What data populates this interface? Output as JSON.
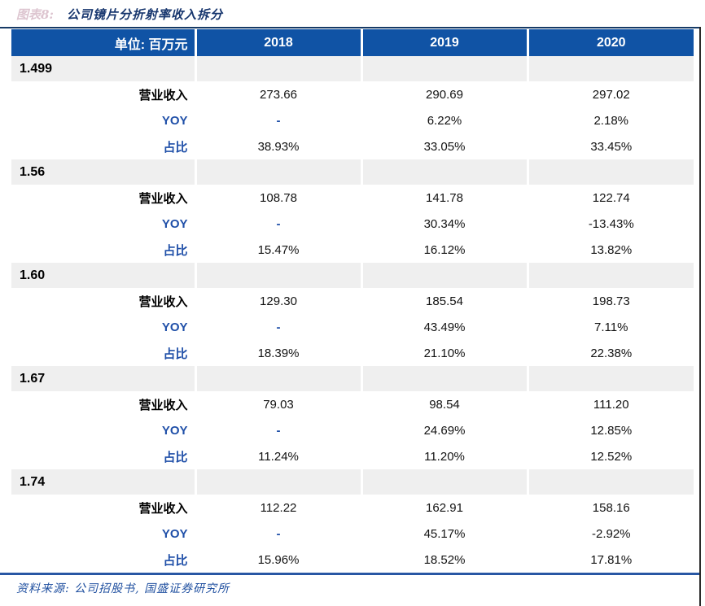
{
  "title": {
    "prefix": "图表8:",
    "text": "公司镜片分折射率收入拆分"
  },
  "colors": {
    "header_bg": "#1053a5",
    "section_row_bg": "#efefef",
    "blue_text": "#1f4fa8",
    "title_navy": "#17366e",
    "top_rule": "#163a66",
    "bottom_rule": "#2857a4"
  },
  "table": {
    "unit_header": "单位: 百万元",
    "years": [
      "2018",
      "2019",
      "2020"
    ],
    "row_labels": {
      "revenue": "营业收入",
      "yoy": "YOY",
      "share": "占比"
    },
    "sections": [
      {
        "name": "1.499",
        "revenue": [
          "273.66",
          "290.69",
          "297.02"
        ],
        "yoy": [
          "-",
          "6.22%",
          "2.18%"
        ],
        "share": [
          "38.93%",
          "33.05%",
          "33.45%"
        ]
      },
      {
        "name": "1.56",
        "revenue": [
          "108.78",
          "141.78",
          "122.74"
        ],
        "yoy": [
          "-",
          "30.34%",
          "-13.43%"
        ],
        "share": [
          "15.47%",
          "16.12%",
          "13.82%"
        ]
      },
      {
        "name": "1.60",
        "revenue": [
          "129.30",
          "185.54",
          "198.73"
        ],
        "yoy": [
          "-",
          "43.49%",
          "7.11%"
        ],
        "share": [
          "18.39%",
          "21.10%",
          "22.38%"
        ]
      },
      {
        "name": "1.67",
        "revenue": [
          "79.03",
          "98.54",
          "111.20"
        ],
        "yoy": [
          "-",
          "24.69%",
          "12.85%"
        ],
        "share": [
          "11.24%",
          "11.20%",
          "12.52%"
        ]
      },
      {
        "name": "1.74",
        "revenue": [
          "112.22",
          "162.91",
          "158.16"
        ],
        "yoy": [
          "-",
          "45.17%",
          "-2.92%"
        ],
        "share": [
          "15.96%",
          "18.52%",
          "17.81%"
        ]
      }
    ]
  },
  "footer": {
    "source": "资料来源: 公司招股书, 国盛证券研究所"
  }
}
